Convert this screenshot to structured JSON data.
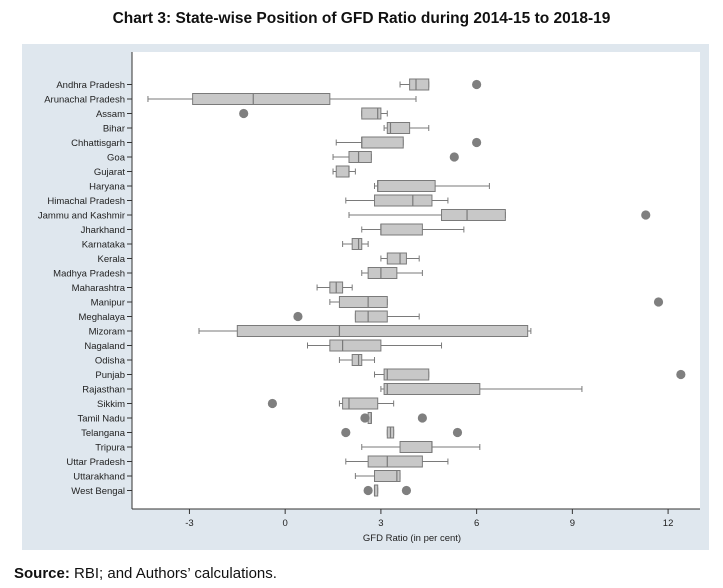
{
  "title": "Chart 3: State-wise Position of GFD Ratio during 2014-15 to 2018-19",
  "source_label": "Source:",
  "source_text": "RBI; and Authors’ calculations.",
  "colors": {
    "outer_bg": "#dfe7ee",
    "plot_bg": "#ffffff",
    "box_fill": "#c8c8c8",
    "box_stroke": "#7a7a7a",
    "outlier": "#7f7f7f"
  },
  "chart_data": {
    "type": "boxplot",
    "orientation": "horizontal",
    "title": "Chart 3: State-wise Position of GFD Ratio during 2014-15 to 2018-19",
    "xlabel": "GFD Ratio (in per cent)",
    "ylabel": "",
    "xlim": [
      -4.8,
      13.0
    ],
    "xticks": [
      -3,
      0,
      3,
      6,
      9,
      12
    ],
    "grid": false,
    "categories": [
      "Andhra Pradesh",
      "Arunachal Pradesh",
      "Assam",
      "Bihar",
      "Chhattisgarh",
      "Goa",
      "Gujarat",
      "Haryana",
      "Himachal Pradesh",
      "Jammu and Kashmir",
      "Jharkhand",
      "Karnataka",
      "Kerala",
      "Madhya Pradesh",
      "Maharashtra",
      "Manipur",
      "Meghalaya",
      "Mizoram",
      "Nagaland",
      "Odisha",
      "Punjab",
      "Rajasthan",
      "Sikkim",
      "Tamil Nadu",
      "Telangana",
      "Tripura",
      "Uttar Pradesh",
      "Uttarakhand",
      "West Bengal"
    ],
    "boxes": [
      {
        "min": 3.6,
        "q1": 3.9,
        "median": 4.1,
        "q3": 4.5,
        "max": 4.5,
        "outliers": [
          6.0
        ]
      },
      {
        "min": -4.3,
        "q1": -2.9,
        "median": -1.0,
        "q3": 1.4,
        "max": 4.1,
        "outliers": []
      },
      {
        "min": 2.4,
        "q1": 2.4,
        "median": 2.9,
        "q3": 3.0,
        "max": 3.2,
        "outliers": [
          -1.3
        ]
      },
      {
        "min": 3.1,
        "q1": 3.2,
        "median": 3.3,
        "q3": 3.9,
        "max": 4.5,
        "outliers": []
      },
      {
        "min": 1.6,
        "q1": 2.4,
        "median": 2.4,
        "q3": 3.7,
        "max": 3.7,
        "outliers": [
          6.0
        ]
      },
      {
        "min": 1.5,
        "q1": 2.0,
        "median": 2.3,
        "q3": 2.7,
        "max": 2.7,
        "outliers": [
          5.3
        ]
      },
      {
        "min": 1.5,
        "q1": 1.6,
        "median": 2.0,
        "q3": 2.0,
        "max": 2.2,
        "outliers": []
      },
      {
        "min": 2.8,
        "q1": 2.9,
        "median": 2.9,
        "q3": 4.7,
        "max": 6.4,
        "outliers": []
      },
      {
        "min": 1.9,
        "q1": 2.8,
        "median": 4.0,
        "q3": 4.6,
        "max": 5.1,
        "outliers": []
      },
      {
        "min": 2.0,
        "q1": 4.9,
        "median": 5.7,
        "q3": 6.9,
        "max": 6.9,
        "outliers": [
          11.3
        ]
      },
      {
        "min": 2.4,
        "q1": 3.0,
        "median": 3.0,
        "q3": 4.3,
        "max": 5.6,
        "outliers": []
      },
      {
        "min": 1.8,
        "q1": 2.1,
        "median": 2.3,
        "q3": 2.4,
        "max": 2.6,
        "outliers": []
      },
      {
        "min": 3.0,
        "q1": 3.2,
        "median": 3.6,
        "q3": 3.8,
        "max": 4.2,
        "outliers": []
      },
      {
        "min": 2.4,
        "q1": 2.6,
        "median": 3.0,
        "q3": 3.5,
        "max": 4.3,
        "outliers": []
      },
      {
        "min": 1.0,
        "q1": 1.4,
        "median": 1.6,
        "q3": 1.8,
        "max": 2.1,
        "outliers": []
      },
      {
        "min": 1.4,
        "q1": 1.7,
        "median": 2.6,
        "q3": 3.2,
        "max": 3.2,
        "outliers": [
          11.7
        ]
      },
      {
        "min": 2.2,
        "q1": 2.2,
        "median": 2.6,
        "q3": 3.2,
        "max": 4.2,
        "outliers": [
          0.4
        ]
      },
      {
        "min": -2.7,
        "q1": -1.5,
        "median": 1.7,
        "q3": 7.6,
        "max": 7.7,
        "outliers": []
      },
      {
        "min": 0.7,
        "q1": 1.4,
        "median": 1.8,
        "q3": 3.0,
        "max": 4.9,
        "outliers": []
      },
      {
        "min": 1.7,
        "q1": 2.1,
        "median": 2.3,
        "q3": 2.4,
        "max": 2.8,
        "outliers": []
      },
      {
        "min": 2.8,
        "q1": 3.1,
        "median": 3.2,
        "q3": 4.5,
        "max": 4.5,
        "outliers": [
          12.4
        ]
      },
      {
        "min": 3.0,
        "q1": 3.1,
        "median": 3.2,
        "q3": 6.1,
        "max": 9.3,
        "outliers": []
      },
      {
        "min": 1.7,
        "q1": 1.8,
        "median": 2.0,
        "q3": 2.9,
        "max": 3.4,
        "outliers": [
          -0.4
        ]
      },
      {
        "min": 2.6,
        "q1": 2.6,
        "median": 2.7,
        "q3": 2.7,
        "max": 2.7,
        "outliers": [
          2.5,
          4.3
        ]
      },
      {
        "min": 3.2,
        "q1": 3.2,
        "median": 3.3,
        "q3": 3.4,
        "max": 3.4,
        "outliers": [
          1.9,
          5.4
        ]
      },
      {
        "min": 2.4,
        "q1": 3.6,
        "median": 4.6,
        "q3": 4.6,
        "max": 6.1,
        "outliers": []
      },
      {
        "min": 1.9,
        "q1": 2.6,
        "median": 3.2,
        "q3": 4.3,
        "max": 5.1,
        "outliers": []
      },
      {
        "min": 2.2,
        "q1": 2.8,
        "median": 3.5,
        "q3": 3.6,
        "max": 3.6,
        "outliers": []
      },
      {
        "min": 2.8,
        "q1": 2.8,
        "median": 2.8,
        "q3": 2.9,
        "max": 2.9,
        "outliers": [
          2.6,
          3.8
        ]
      }
    ]
  }
}
